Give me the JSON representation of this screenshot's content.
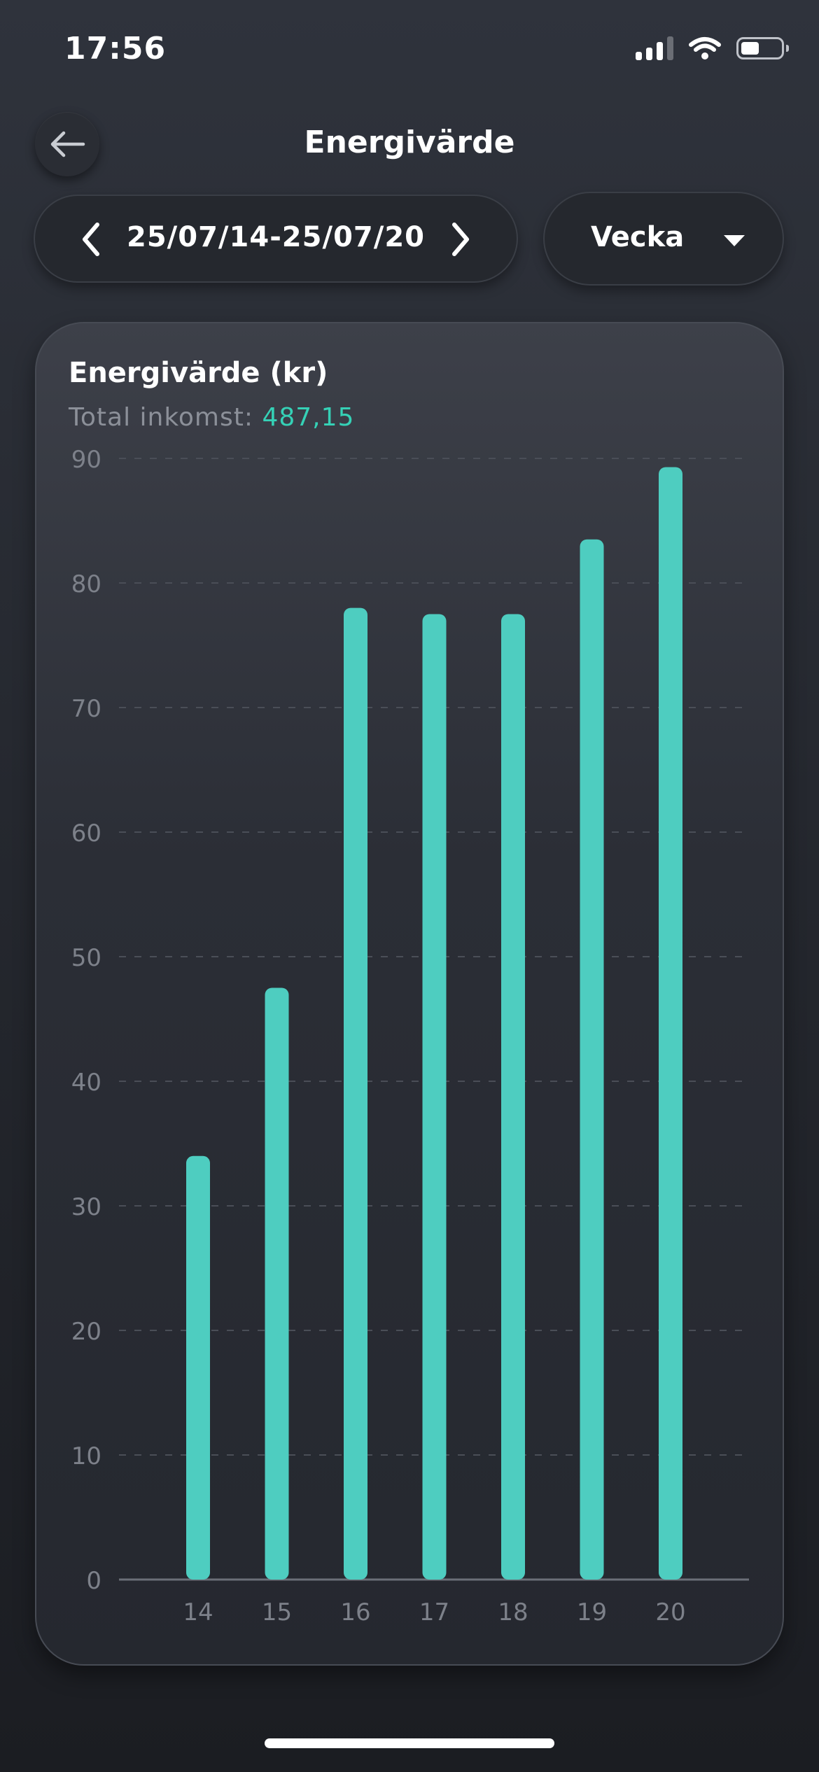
{
  "status_bar": {
    "time": "17:56",
    "battery_percent": 45
  },
  "header": {
    "title": "Energivärde",
    "back_icon": "arrow-left-icon"
  },
  "date_selector": {
    "range": "25/07/14-25/07/20",
    "prev_icon": "chevron-left-icon",
    "next_icon": "chevron-right-icon"
  },
  "period_selector": {
    "value": "Vecka",
    "icon": "caret-down-icon"
  },
  "card": {
    "title": "Energivärde (kr)",
    "total_label": "Total inkomst:",
    "total_value": "487,15"
  },
  "colors": {
    "accent": "#4ecdc0",
    "total_value": "#35d1b6",
    "axis_text": "#7d818a",
    "grid": "#4a4e57"
  },
  "chart_data": {
    "type": "bar",
    "categories": [
      "14",
      "15",
      "16",
      "17",
      "18",
      "19",
      "20"
    ],
    "values": [
      34,
      47.5,
      78,
      77.5,
      77.5,
      83.5,
      89.3
    ],
    "ylim": [
      0,
      90
    ],
    "yticks": [
      0,
      10,
      20,
      30,
      40,
      50,
      60,
      70,
      80,
      90
    ],
    "grid": true
  }
}
